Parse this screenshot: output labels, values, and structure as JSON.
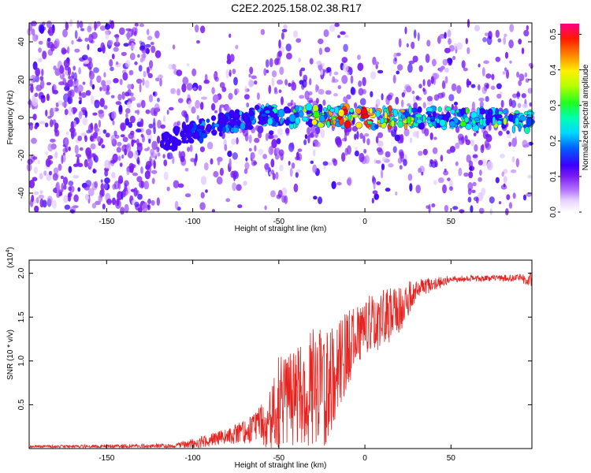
{
  "title": "C2E2.2025.158.02.38.R17",
  "colors": {
    "signal_line": "#e8221e",
    "background": "#ffffff",
    "colormap": [
      "#ffffff",
      "#e0c8ff",
      "#b070ff",
      "#7a1cf2",
      "#3a00ff",
      "#0044ff",
      "#00a0ff",
      "#00e8ff",
      "#00ff9a",
      "#28ff00",
      "#b6ff00",
      "#ffee00",
      "#ff9a00",
      "#ff3a00",
      "#ff0000",
      "#ff0088"
    ]
  },
  "chart_data": [
    {
      "type": "heatmap",
      "xlabel": "Height of straight line (km)",
      "ylabel": "Frequency (Hz)",
      "xlim": [
        -195,
        97
      ],
      "ylim": [
        -50,
        50
      ],
      "x_ticks": [
        -150,
        -100,
        -50,
        0,
        50
      ],
      "x_tick_labels": [
        "-150",
        "-100",
        "-50",
        "0",
        "50"
      ],
      "y_ticks": [
        -40,
        -20,
        0,
        20,
        40
      ],
      "y_tick_labels": [
        "-40",
        "-20",
        "0",
        "20",
        "40"
      ],
      "colorbar": {
        "label": "Normalized spectral amplitude",
        "range": [
          0,
          0.53
        ],
        "ticks": [
          0,
          0.1,
          0.2,
          0.3,
          0.4,
          0.5
        ],
        "tick_labels": [
          "0.0",
          "0.1",
          "0.2",
          "0.3",
          "0.4",
          "0.5"
        ]
      },
      "ridge_line": {
        "description_x": [
          -115,
          -100,
          -80,
          -60,
          -40,
          -20,
          0,
          50,
          95
        ],
        "frequency_hz": [
          -12,
          -8,
          -3,
          1,
          1,
          1,
          0,
          0,
          -2
        ],
        "peak_amplitude": [
          0.12,
          0.18,
          0.2,
          0.24,
          0.3,
          0.45,
          0.5,
          0.28,
          0.34
        ]
      },
      "noise_region_x": [
        -195,
        -120
      ]
    },
    {
      "type": "line",
      "xlabel": "Height of straight line (km)",
      "ylabel": "SNR (10 * v/v)",
      "y_multiplier_label": "(x10",
      "y_multiplier_exponent": "4",
      "y_multiplier_close": ")",
      "xlim": [
        -195,
        97
      ],
      "ylim": [
        0,
        21500
      ],
      "x_ticks": [
        -150,
        -100,
        -50,
        0,
        50
      ],
      "x_tick_labels": [
        "-150",
        "-100",
        "-50",
        "0",
        "50"
      ],
      "y_ticks": [
        5000,
        10000,
        15000,
        20000
      ],
      "y_tick_labels": [
        "0.5",
        "1.0",
        "1.5",
        "2.0"
      ],
      "series": [
        {
          "envelope_x": [
            -195,
            -110,
            -100,
            -80,
            -65,
            -55,
            -50,
            -45,
            -40,
            -30,
            -20,
            -15,
            -10,
            -5,
            0,
            10,
            20,
            30,
            50,
            70,
            90,
            97
          ],
          "baseline": [
            200,
            300,
            500,
            1300,
            2000,
            3000,
            4000,
            4500,
            5000,
            6000,
            6500,
            9000,
            11000,
            12500,
            13500,
            14500,
            15500,
            18000,
            19300,
            19400,
            19400,
            19200
          ],
          "spread": [
            150,
            250,
            600,
            900,
            1600,
            3500,
            6000,
            5500,
            6000,
            7000,
            6500,
            5000,
            4500,
            3500,
            3500,
            3500,
            3000,
            1200,
            400,
            350,
            450,
            900
          ]
        }
      ]
    }
  ]
}
